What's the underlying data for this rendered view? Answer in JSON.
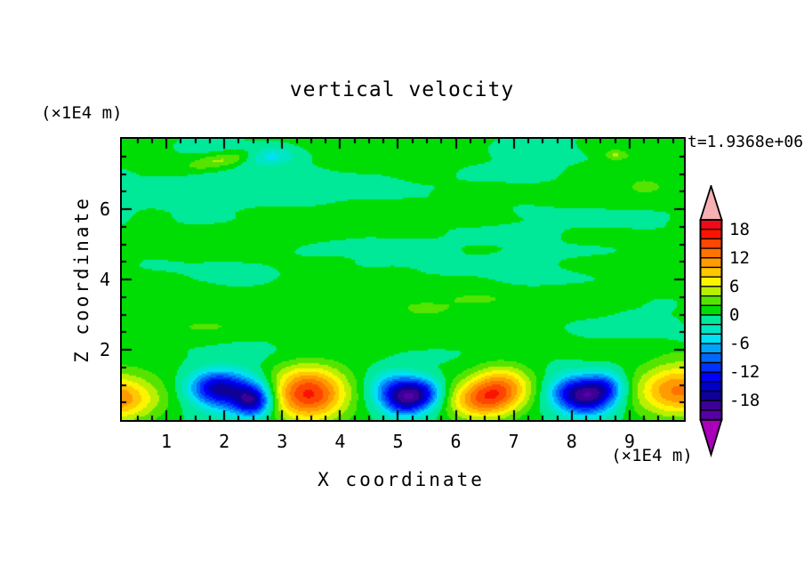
{
  "chart_data": {
    "type": "contour",
    "title": "vertical velocity",
    "xlabel": "X coordinate",
    "ylabel": "Z coordinate",
    "x_unit_label": "(×1E4 m)",
    "y_unit_label": "(×1E4 m)",
    "timestamp_label": "t=1.9368e+06",
    "xlim": [
      0.2308,
      9.9385
    ],
    "zlim": [
      0,
      8
    ],
    "xticks": [
      1,
      2,
      3,
      4,
      5,
      6,
      7,
      8,
      9
    ],
    "zticks": [
      2,
      4,
      6
    ],
    "x_minor_step": 0.25,
    "z_minor_step": 0.5,
    "levels_min": -22,
    "levels_max": 20,
    "levels_step": 2,
    "colorbar_tick_values": [
      18,
      12,
      6,
      0,
      -6,
      -12,
      -18
    ],
    "colorbar_tick_labels": [
      "18",
      "12",
      "6",
      "0",
      "-6",
      "-12",
      "-18"
    ],
    "palette_low_to_high": [
      "#5800a8",
      "#3c0096",
      "#0f0096",
      "#0000c8",
      "#0000fa",
      "#0032fa",
      "#0069fa",
      "#00a5fa",
      "#00e1f5",
      "#00e6c3",
      "#00e998",
      "#00dd05",
      "#55e400",
      "#b9ef00",
      "#fdf500",
      "#ffc800",
      "#ff9b00",
      "#ff7300",
      "#ff4600",
      "#fa1400",
      "#f00a19"
    ],
    "over_color": "#f7b0b4",
    "under_color": "#aa00b9",
    "frame_color": "#000000",
    "field": {
      "cells": [
        {
          "x": 0.05,
          "z": 0.62,
          "sx": 0.55,
          "sz": 0.45,
          "amp": 12.5
        },
        {
          "x": 1.8,
          "z": 0.95,
          "sx": 0.3,
          "sz": 0.32,
          "amp": -8.5
        },
        {
          "x": 2.15,
          "z": 0.8,
          "sx": 0.42,
          "sz": 0.4,
          "amp": -11
        },
        {
          "x": 2.5,
          "z": 0.52,
          "sx": 0.22,
          "sz": 0.3,
          "amp": -13
        },
        {
          "x": 3.45,
          "z": 0.75,
          "sx": 0.45,
          "sz": 0.52,
          "amp": 16.5
        },
        {
          "x": 4.95,
          "z": 0.85,
          "sx": 0.3,
          "sz": 0.36,
          "amp": -10
        },
        {
          "x": 5.1,
          "z": 0.48,
          "sx": 0.24,
          "sz": 0.3,
          "amp": -8
        },
        {
          "x": 5.4,
          "z": 0.75,
          "sx": 0.26,
          "sz": 0.32,
          "amp": -12
        },
        {
          "x": 6.42,
          "z": 0.55,
          "sx": 0.4,
          "sz": 0.38,
          "amp": 11
        },
        {
          "x": 6.8,
          "z": 0.95,
          "sx": 0.36,
          "sz": 0.42,
          "amp": 10
        },
        {
          "x": 8.0,
          "z": 0.8,
          "sx": 0.3,
          "sz": 0.36,
          "amp": -9
        },
        {
          "x": 8.3,
          "z": 0.62,
          "sx": 0.32,
          "sz": 0.36,
          "amp": -12.5
        },
        {
          "x": 8.58,
          "z": 0.95,
          "sx": 0.24,
          "sz": 0.3,
          "amp": -8
        },
        {
          "x": 9.85,
          "z": 0.85,
          "sx": 0.52,
          "sz": 0.5,
          "amp": 12.5
        }
      ],
      "anomalies": [
        {
          "x": 2.0,
          "z": 7.4,
          "sx": 0.5,
          "sz": 0.14,
          "amp": 4.6,
          "rot": 18
        },
        {
          "x": 2.78,
          "z": 7.55,
          "sx": 0.3,
          "sz": 0.2,
          "amp": -4.6,
          "rot": 0
        },
        {
          "x": 8.75,
          "z": 7.55,
          "sx": 0.14,
          "sz": 0.1,
          "amp": 3.6,
          "rot": 0
        },
        {
          "x": 9.55,
          "z": 3.3,
          "sx": 0.18,
          "sz": 0.12,
          "amp": -2.8,
          "rot": 0
        }
      ],
      "noise": {
        "bias": 0.3,
        "amp1": 1.55,
        "f1x": 0.42,
        "f1z": 1.25,
        "amp2": 0.75,
        "f2x": 1.05,
        "f2z": 2.3,
        "seed": 5.17,
        "attenuation_z0": 0.9,
        "attenuation_z1": 2.1,
        "attenuation_floor": 0.15
      }
    }
  }
}
